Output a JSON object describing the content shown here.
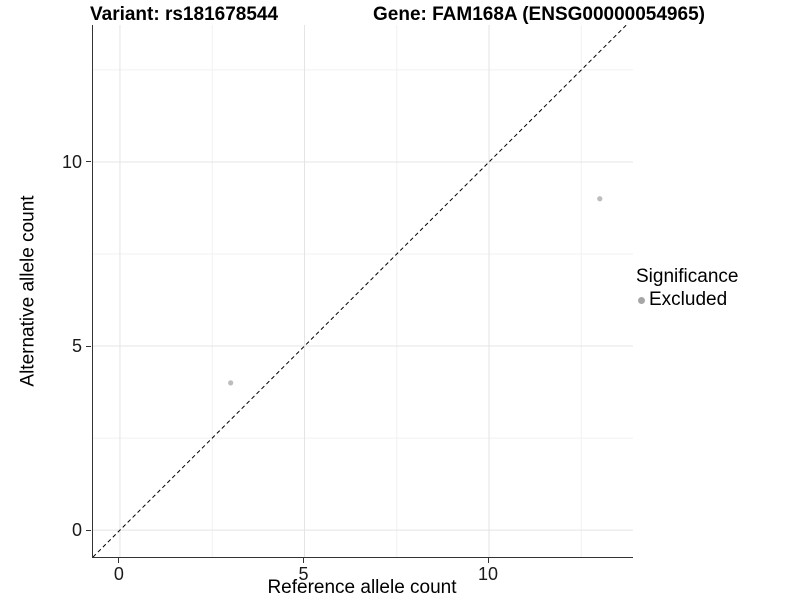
{
  "header": {
    "variant_title": "Variant: rs181678544",
    "gene_title": "Gene: FAM168A (ENSG00000054965)"
  },
  "axes": {
    "x_label": "Reference allele count",
    "y_label": "Alternative allele count"
  },
  "legend": {
    "title": "Significance",
    "items": [
      {
        "label": "Excluded",
        "color": "#a6a6a6"
      }
    ]
  },
  "chart_data": {
    "type": "scatter",
    "title": "Variant: rs181678544   Gene: FAM168A (ENSG00000054965)",
    "xlabel": "Reference allele count",
    "ylabel": "Alternative allele count",
    "xlim": [
      -0.73,
      13.9
    ],
    "ylim": [
      -0.73,
      13.72
    ],
    "x_major_ticks": [
      0,
      5,
      10
    ],
    "y_major_ticks": [
      0,
      5,
      10
    ],
    "x_minor_ticks": [
      2.5,
      7.5,
      12.5
    ],
    "y_minor_ticks": [
      2.5,
      7.5,
      12.5
    ],
    "grid": {
      "major_color": "#e4e4e4",
      "minor_color": "#f1f1f1",
      "show": true
    },
    "identity_line": {
      "present": true,
      "style": "dashed",
      "color": "#000000",
      "equation": "y = x"
    },
    "series": [
      {
        "name": "Excluded",
        "color": "#bdbdbd",
        "point_radius": 2.6,
        "points": [
          {
            "x": 3,
            "y": 4
          },
          {
            "x": 13,
            "y": 9
          }
        ]
      }
    ],
    "legend_position": "right"
  }
}
